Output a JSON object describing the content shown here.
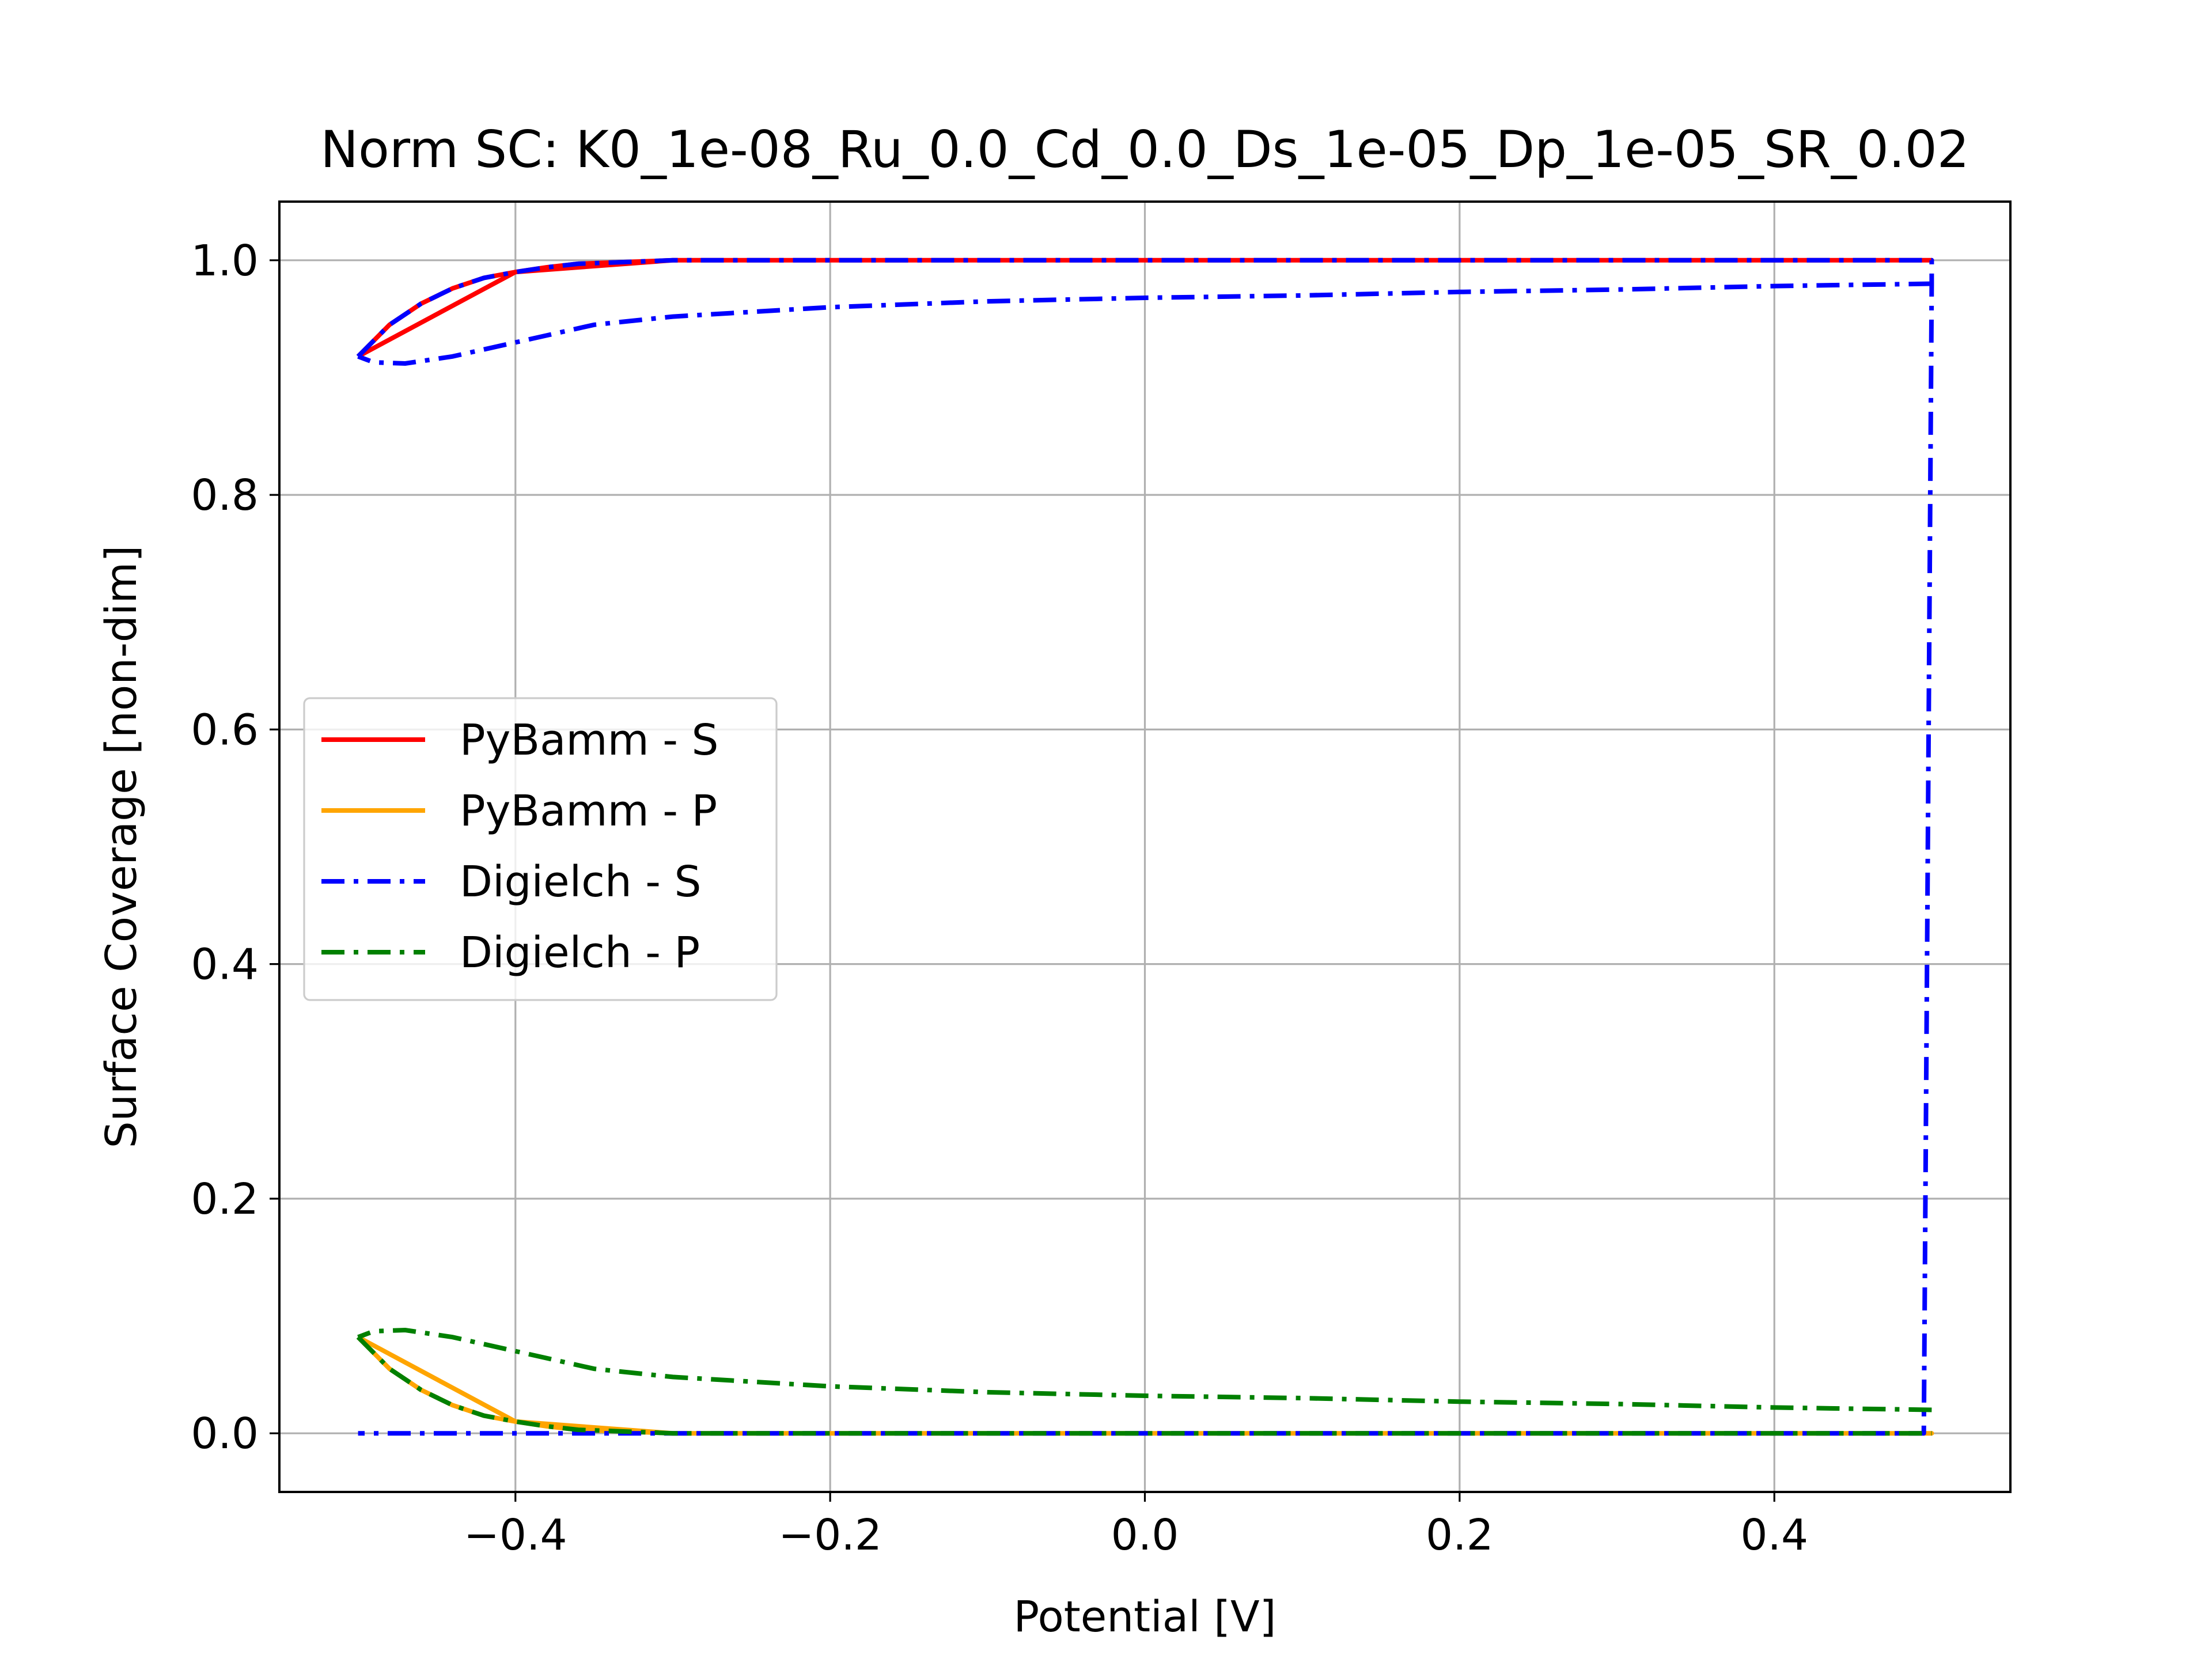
{
  "chart_data": {
    "type": "line",
    "title": "Norm SC: K0_1e-08_Ru_0.0_Cd_0.0_Ds_1e-05_Dp_1e-05_SR_0.02",
    "xlabel": "Potential [V]",
    "ylabel": "Surface Coverage [non-dim]",
    "xlim": [
      -0.55,
      0.55
    ],
    "ylim": [
      -0.05,
      1.05
    ],
    "xticks": [
      -0.4,
      -0.2,
      0.0,
      0.2,
      0.4
    ],
    "xtick_labels": [
      "−0.4",
      "−0.2",
      "0.0",
      "0.2",
      "0.4"
    ],
    "yticks": [
      0.0,
      0.2,
      0.4,
      0.6,
      0.8,
      1.0
    ],
    "ytick_labels": [
      "0.0",
      "0.2",
      "0.4",
      "0.6",
      "0.8",
      "1.0"
    ],
    "grid": true,
    "legend_position": "center-left",
    "series": [
      {
        "name": "PyBamm - S",
        "color": "#ff0000",
        "linestyle": "solid",
        "x": [
          -0.5,
          -0.48,
          -0.46,
          -0.44,
          -0.42,
          -0.4,
          -0.38,
          -0.36,
          -0.34,
          -0.32,
          -0.3,
          -0.25,
          -0.2,
          -0.1,
          0.0,
          0.1,
          0.2,
          0.3,
          0.4,
          0.5,
          0.5,
          0.4,
          0.3,
          0.2,
          0.1,
          0.0,
          -0.1,
          -0.2,
          -0.3,
          -0.4,
          -0.5
        ],
        "y": [
          0.918,
          0.945,
          0.963,
          0.976,
          0.985,
          0.99,
          0.994,
          0.997,
          0.998,
          0.999,
          1.0,
          1.0,
          1.0,
          1.0,
          1.0,
          1.0,
          1.0,
          1.0,
          1.0,
          1.0,
          1.0,
          1.0,
          1.0,
          1.0,
          1.0,
          1.0,
          1.0,
          1.0,
          1.0,
          0.99,
          0.918
        ]
      },
      {
        "name": "PyBamm - P",
        "color": "#ffa500",
        "linestyle": "solid",
        "x": [
          -0.5,
          -0.48,
          -0.46,
          -0.44,
          -0.42,
          -0.4,
          -0.38,
          -0.36,
          -0.34,
          -0.32,
          -0.3,
          -0.25,
          -0.2,
          -0.1,
          0.0,
          0.1,
          0.2,
          0.3,
          0.4,
          0.5,
          0.5,
          0.4,
          0.3,
          0.2,
          0.1,
          0.0,
          -0.1,
          -0.2,
          -0.3,
          -0.4,
          -0.5
        ],
        "y": [
          0.082,
          0.055,
          0.037,
          0.024,
          0.015,
          0.01,
          0.006,
          0.003,
          0.002,
          0.001,
          0.0,
          0.0,
          0.0,
          0.0,
          0.0,
          0.0,
          0.0,
          0.0,
          0.0,
          0.0,
          0.0,
          0.0,
          0.0,
          0.0,
          0.0,
          0.0,
          0.0,
          0.0,
          0.0,
          0.01,
          0.082
        ]
      },
      {
        "name": "Digielch - S",
        "color": "#0000ff",
        "linestyle": "dashdot",
        "x": [
          -0.5,
          -0.48,
          -0.46,
          -0.44,
          -0.42,
          -0.4,
          -0.38,
          -0.36,
          -0.34,
          -0.32,
          -0.3,
          -0.25,
          -0.2,
          -0.1,
          0.0,
          0.1,
          0.2,
          0.3,
          0.4,
          0.5,
          0.5,
          0.495,
          0.4,
          0.3,
          0.2,
          0.1,
          0.0,
          -0.1,
          -0.2,
          -0.3,
          -0.4,
          -0.5
        ],
        "y": [
          0.918,
          0.945,
          0.963,
          0.976,
          0.985,
          0.99,
          0.994,
          0.997,
          0.998,
          0.999,
          1.0,
          1.0,
          1.0,
          1.0,
          1.0,
          1.0,
          1.0,
          1.0,
          1.0,
          1.0,
          0.98,
          0.0,
          0.0,
          0.0,
          0.0,
          0.0,
          0.0,
          0.0,
          0.0,
          0.0,
          0.0,
          0.0
        ]
      },
      {
        "name": "Digielch - P",
        "color": "#008000",
        "linestyle": "dashdot",
        "x": [
          -0.5,
          -0.48,
          -0.46,
          -0.44,
          -0.42,
          -0.4,
          -0.38,
          -0.36,
          -0.34,
          -0.32,
          -0.3,
          -0.25,
          -0.2,
          -0.1,
          0.0,
          0.1,
          0.2,
          0.3,
          0.4,
          0.5
        ],
        "y": [
          0.082,
          0.055,
          0.037,
          0.024,
          0.015,
          0.01,
          0.006,
          0.003,
          0.002,
          0.001,
          0.0,
          0.0,
          0.0,
          0.0,
          0.0,
          0.0,
          0.0,
          0.0,
          0.0,
          0.0
        ]
      }
    ],
    "extra_curves": {
      "digielch_s_upper_return": {
        "x": [
          0.5,
          0.4,
          0.3,
          0.2,
          0.1,
          0.0,
          -0.1,
          -0.2,
          -0.3,
          -0.35,
          -0.4,
          -0.44,
          -0.47,
          -0.49,
          -0.5
        ],
        "y": [
          0.98,
          0.978,
          0.975,
          0.973,
          0.97,
          0.968,
          0.965,
          0.96,
          0.952,
          0.945,
          0.93,
          0.918,
          0.912,
          0.913,
          0.918
        ]
      },
      "digielch_p_upper_return": {
        "x": [
          0.5,
          0.4,
          0.3,
          0.2,
          0.1,
          0.0,
          -0.1,
          -0.2,
          -0.3,
          -0.35,
          -0.4,
          -0.44,
          -0.47,
          -0.49,
          -0.5
        ],
        "y": [
          0.02,
          0.022,
          0.025,
          0.027,
          0.03,
          0.032,
          0.035,
          0.04,
          0.048,
          0.055,
          0.07,
          0.082,
          0.088,
          0.087,
          0.082
        ]
      }
    }
  }
}
